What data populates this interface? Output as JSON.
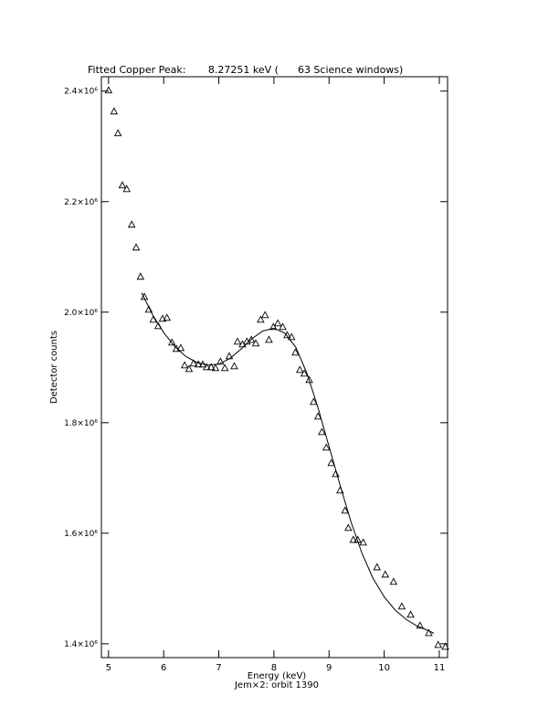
{
  "chart_data": {
    "type": "scatter",
    "title": "Fitted Copper Peak:       8.27251 keV (      63 Science windows)",
    "x_label": "Energy (keV)",
    "subtitle": "Jem×2: orbit 1390",
    "y_label": "Detector counts",
    "xlim": [
      4.87,
      11.15
    ],
    "ylim": [
      1375000,
      2426000
    ],
    "xticks": [
      5,
      6,
      7,
      8,
      9,
      10,
      11
    ],
    "yticks": [
      {
        "value": 1400000,
        "label": "1.4×10⁶"
      },
      {
        "value": 1600000,
        "label": "1.6×10⁶"
      },
      {
        "value": 1800000,
        "label": "1.8×10⁶"
      },
      {
        "value": 2000000,
        "label": "2.0×10⁶"
      },
      {
        "value": 2200000,
        "label": "2.2×10⁶"
      },
      {
        "value": 2400000,
        "label": "2.4×10⁶"
      }
    ],
    "series": [
      {
        "style": "markers",
        "marker": "triangle",
        "color": "#000000",
        "x": [
          5.0,
          5.1,
          5.17,
          5.25,
          5.33,
          5.42,
          5.5,
          5.58,
          5.65,
          5.73,
          5.81,
          5.9,
          5.98,
          6.06,
          6.15,
          6.23,
          6.31,
          6.38,
          6.46,
          6.54,
          6.63,
          6.71,
          6.78,
          6.86,
          6.94,
          7.03,
          7.11,
          7.19,
          7.28,
          7.34,
          7.43,
          7.51,
          7.59,
          7.67,
          7.76,
          7.84,
          7.91,
          7.99,
          8.07,
          8.16,
          8.24,
          8.32,
          8.39,
          8.47,
          8.55,
          8.64,
          8.72,
          8.8,
          8.87,
          8.95,
          9.04,
          9.12,
          9.2,
          9.29,
          9.35,
          9.44,
          9.52,
          9.62,
          9.87,
          10.02,
          10.17,
          10.32,
          10.48,
          10.65,
          10.81,
          10.98,
          11.11
        ],
        "values": [
          2401700,
          2363600,
          2324000,
          2229800,
          2223100,
          2158700,
          2117400,
          2064500,
          2028100,
          2005000,
          1986800,
          1975200,
          1988400,
          1990100,
          1945500,
          1933900,
          1935500,
          1904100,
          1897500,
          1907400,
          1905800,
          1905800,
          1900800,
          1900800,
          1899200,
          1910700,
          1899200,
          1920700,
          1902500,
          1947100,
          1942200,
          1947100,
          1950400,
          1943800,
          1986800,
          1995000,
          1950400,
          1973600,
          1980200,
          1973600,
          1958700,
          1955400,
          1927300,
          1895900,
          1889300,
          1877700,
          1838000,
          1811600,
          1783500,
          1755400,
          1727300,
          1707400,
          1677700,
          1641300,
          1609900,
          1588400,
          1588400,
          1583500,
          1538800,
          1525600,
          1512400,
          1467800,
          1452900,
          1433100,
          1419800,
          1398300,
          1395000
        ]
      },
      {
        "style": "line",
        "color": "#000000",
        "x": [
          5.6,
          5.8,
          6.0,
          6.2,
          6.4,
          6.6,
          6.8,
          7.0,
          7.2,
          7.4,
          7.6,
          7.8,
          8.0,
          8.2,
          8.4,
          8.6,
          8.8,
          9.0,
          9.2,
          9.4,
          9.6,
          9.8,
          10.0,
          10.2,
          10.4,
          10.6,
          10.8,
          10.9
        ],
        "values": [
          2035000,
          1995000,
          1963000,
          1938000,
          1920000,
          1909000,
          1904000,
          1906000,
          1916000,
          1933000,
          1952000,
          1966000,
          1971000,
          1962000,
          1936000,
          1889000,
          1827000,
          1757000,
          1687000,
          1620000,
          1563000,
          1518000,
          1485000,
          1461000,
          1444000,
          1432000,
          1424000,
          1419000
        ]
      }
    ]
  }
}
